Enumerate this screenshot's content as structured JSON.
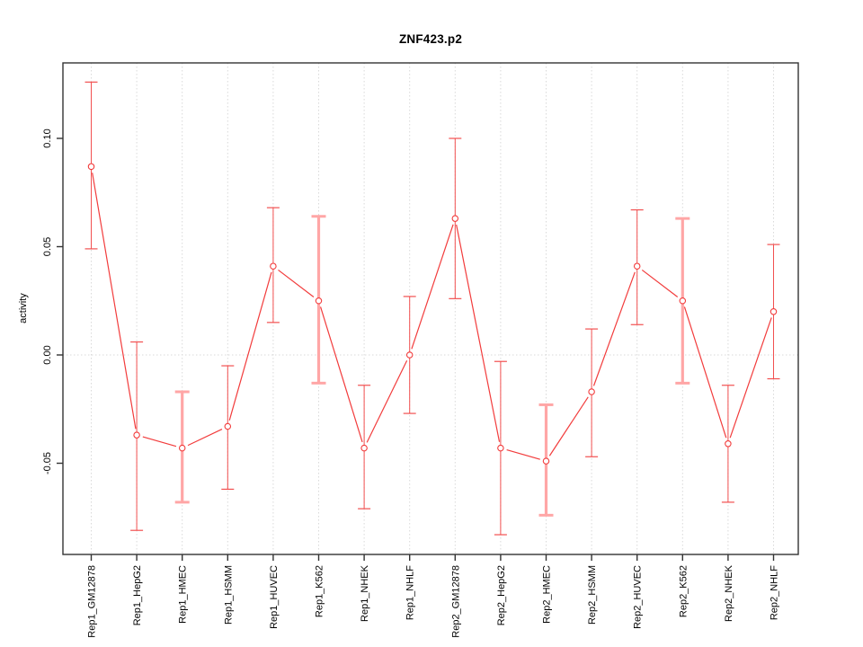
{
  "title": "ZNF423.p2",
  "chart_data": {
    "type": "line",
    "title": "ZNF423.p2",
    "xlabel": "",
    "ylabel": "activity",
    "legend": "none",
    "grid": "dotted vertical gridline at each category; dotted horizontal line at y=0",
    "ylim": [
      -0.092,
      0.135
    ],
    "yticks": [
      -0.05,
      0,
      0.05,
      0.1
    ],
    "ytick_labels": [
      "-0.05",
      "0.00",
      "0.05",
      "0.10"
    ],
    "categories": [
      "Rep1_GM12878",
      "Rep1_HepG2",
      "Rep1_HMEC",
      "Rep1_HSMM",
      "Rep1_HUVEC",
      "Rep1_K562",
      "Rep1_NHEK",
      "Rep1_NHLF",
      "Rep2_GM12878",
      "Rep2_HepG2",
      "Rep2_HMEC",
      "Rep2_HSMM",
      "Rep2_HUVEC",
      "Rep2_K562",
      "Rep2_NHEK",
      "Rep2_NHLF"
    ],
    "series": [
      {
        "name": "activity",
        "marker": "open-circle",
        "values": [
          0.087,
          -0.037,
          -0.043,
          -0.033,
          0.041,
          0.025,
          -0.043,
          0.0,
          0.063,
          -0.043,
          -0.049,
          -0.017,
          0.041,
          0.025,
          -0.041,
          0.02
        ],
        "error_low": [
          0.049,
          -0.081,
          -0.068,
          -0.062,
          0.015,
          -0.013,
          -0.071,
          -0.027,
          0.026,
          -0.083,
          -0.074,
          -0.047,
          0.014,
          -0.013,
          -0.068,
          -0.011
        ],
        "error_high": [
          0.126,
          0.006,
          -0.017,
          -0.005,
          0.068,
          0.064,
          -0.014,
          0.027,
          0.1,
          -0.003,
          -0.023,
          0.012,
          0.067,
          0.063,
          -0.014,
          0.051
        ]
      }
    ],
    "thick_error_bar_indices": [
      2,
      5,
      10,
      13
    ],
    "colors": {
      "line": "#f23c3c",
      "marker": "#f23c3c",
      "error_bar_thin": "#f25050",
      "error_bar_thick": "#ffa6a6",
      "gridline": "#d9d9d9",
      "box": "#333333",
      "text": "#000000",
      "background": "#ffffff"
    }
  }
}
